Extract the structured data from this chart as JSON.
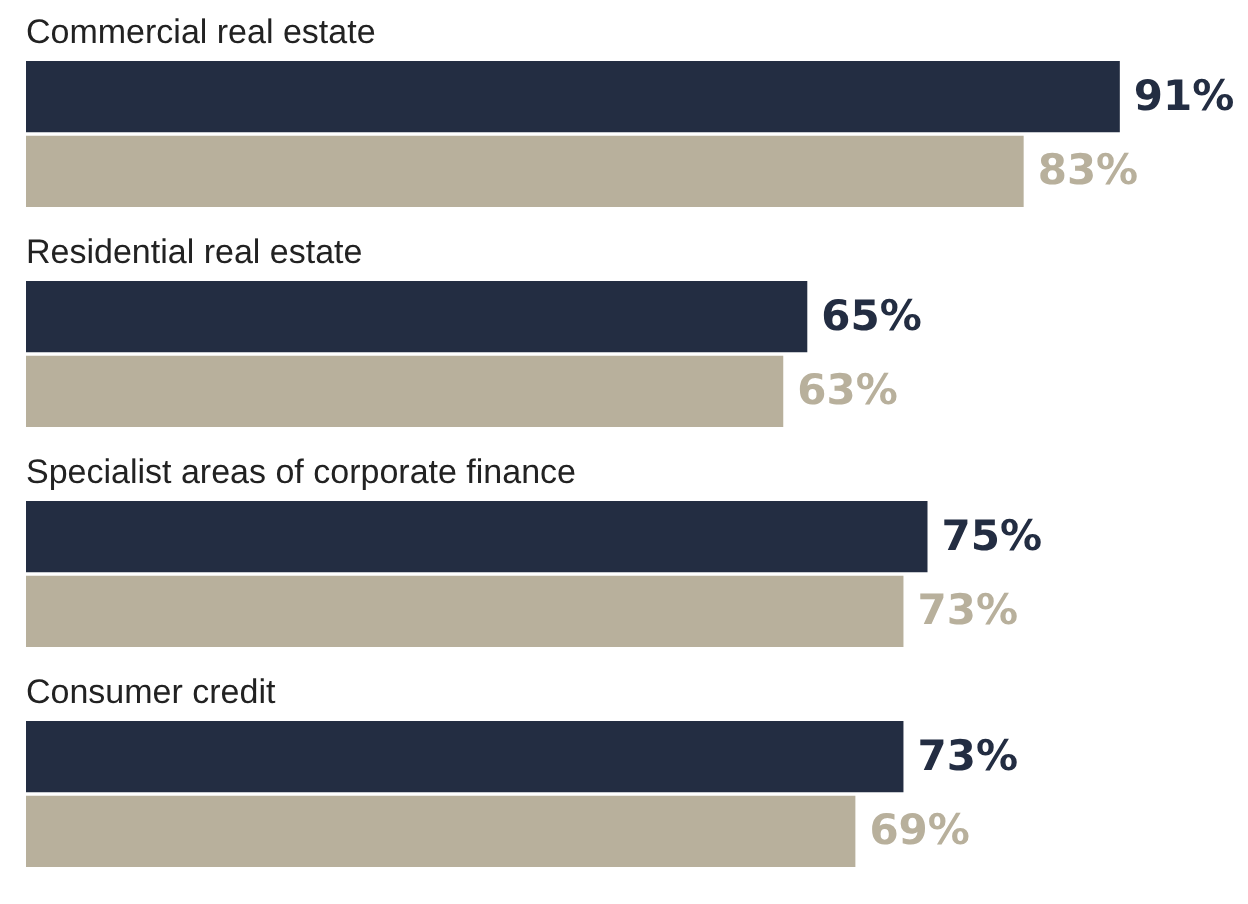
{
  "chart_data": {
    "type": "bar",
    "orientation": "horizontal",
    "categories": [
      "Commercial real estate",
      "Residential real estate",
      "Specialist areas of corporate finance",
      "Consumer credit"
    ],
    "series": [
      {
        "color": "#232d42",
        "values": [
          91,
          65,
          75,
          73
        ],
        "value_labels": [
          "91%",
          "65%",
          "75%",
          "73%"
        ]
      },
      {
        "color": "#b8b09c",
        "values": [
          83,
          63,
          73,
          69
        ],
        "value_labels": [
          "83%",
          "63%",
          "73%",
          "69%"
        ]
      }
    ]
  }
}
